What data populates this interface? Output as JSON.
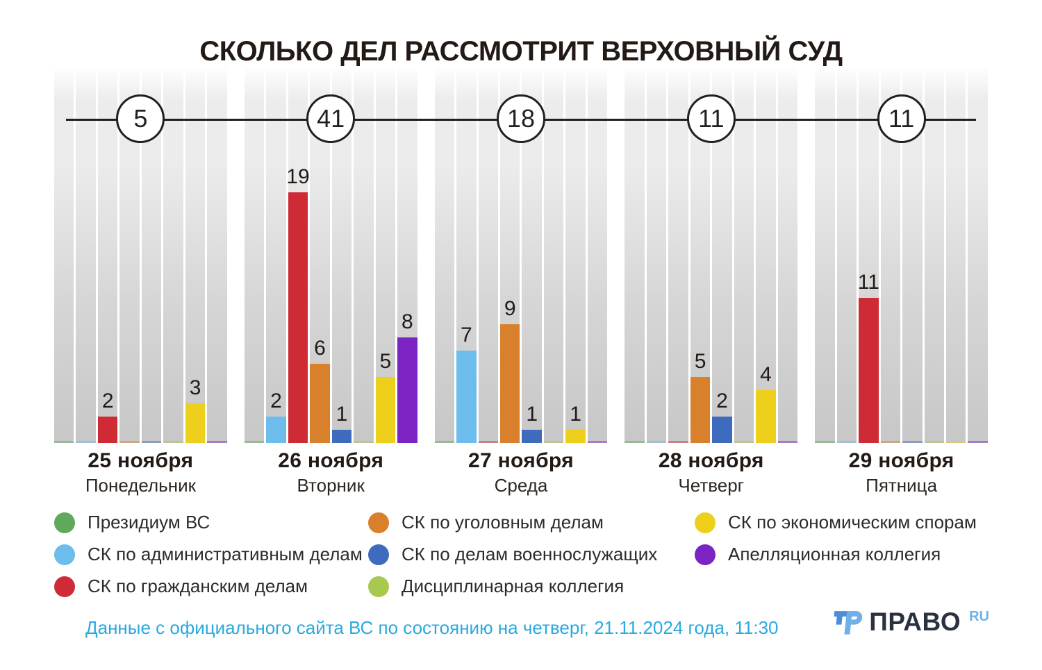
{
  "title": "СКОЛЬКО ДЕЛ РАССМОТРИТ ВЕРХОВНЫЙ СУД",
  "chart_data": {
    "type": "bar",
    "categories": [
      "25 ноября",
      "26 ноября",
      "27 ноября",
      "28 ноября",
      "29 ноября"
    ],
    "weekdays": [
      "Понедельник",
      "Вторник",
      "Среда",
      "Четверг",
      "Пятница"
    ],
    "totals": [
      5,
      41,
      18,
      11,
      11
    ],
    "series": [
      {
        "name": "Президиум ВС",
        "color": "#5fa85c",
        "values": [
          0,
          0,
          0,
          0,
          0
        ]
      },
      {
        "name": "СК по административным делам",
        "color": "#6cbcec",
        "values": [
          0,
          2,
          7,
          0,
          0
        ]
      },
      {
        "name": "СК по гражданским делам",
        "color": "#ce2b37",
        "values": [
          2,
          19,
          0,
          0,
          11
        ]
      },
      {
        "name": "СК по уголовным делам",
        "color": "#d9802c",
        "values": [
          0,
          6,
          9,
          5,
          0
        ]
      },
      {
        "name": "СК по делам военнослужащих",
        "color": "#3f6bbe",
        "values": [
          0,
          1,
          1,
          2,
          0
        ]
      },
      {
        "name": "Дисциплинарная коллегия",
        "color": "#a7c94f",
        "values": [
          0,
          0,
          0,
          0,
          0
        ]
      },
      {
        "name": "СК по экономическим спорам",
        "color": "#eecf1c",
        "values": [
          3,
          5,
          1,
          4,
          0
        ]
      },
      {
        "name": "Апелляционная коллегия",
        "color": "#7c23c4",
        "values": [
          0,
          8,
          0,
          0,
          0
        ]
      }
    ],
    "ylim": [
      0,
      19
    ],
    "legend_position": "bottom",
    "grid": false
  },
  "legend": {
    "columns": [
      [
        0,
        1,
        2
      ],
      [
        3,
        4,
        5
      ],
      [
        6,
        7
      ]
    ]
  },
  "footer_note": "Данные с официального сайта ВС по состоянию на четверг, 21.11.2024 года, 11:30",
  "logo": {
    "brand": "ПРАВО",
    "tld": "RU"
  }
}
